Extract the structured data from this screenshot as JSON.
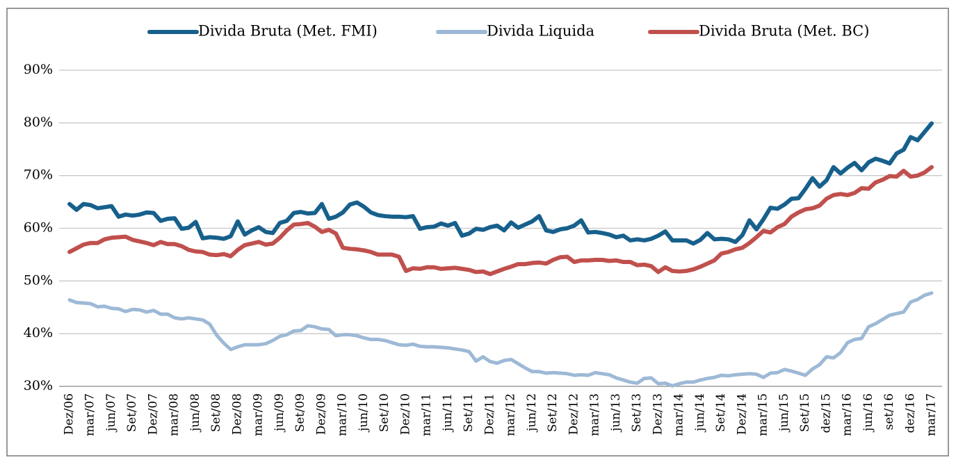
{
  "chart_data": {
    "type": "line",
    "categories": [
      "Dez/06",
      null,
      null,
      "mar/07",
      null,
      null,
      "jun/07",
      null,
      null,
      "Set/07",
      null,
      null,
      "Dez/07",
      null,
      null,
      "mar/08",
      null,
      null,
      "jun/08",
      null,
      null,
      "Set/08",
      null,
      null,
      "Dez/08",
      null,
      null,
      "mar/09",
      null,
      null,
      "jun/09",
      null,
      null,
      "Set/09",
      null,
      null,
      "Dez/09",
      null,
      null,
      "mar/10",
      null,
      null,
      "jun/10",
      null,
      null,
      "Set/10",
      null,
      null,
      "Dez/10",
      null,
      null,
      "mar/11",
      null,
      null,
      "jun/11",
      null,
      null,
      "Set/11",
      null,
      null,
      "Dez/11",
      null,
      null,
      "mar/12",
      null,
      null,
      "jun/12",
      null,
      null,
      "Set/12",
      null,
      null,
      "Dez/12",
      null,
      null,
      "mar/13",
      null,
      null,
      "jun/13",
      null,
      null,
      "Set/13",
      null,
      null,
      "Dez/13",
      null,
      null,
      "mar/14",
      null,
      null,
      "jun/14",
      null,
      null,
      "Set/14",
      null,
      null,
      "Dez/14",
      null,
      null,
      "mar/15",
      null,
      null,
      "jun/15",
      null,
      null,
      "Set/15",
      null,
      null,
      "dez/15",
      null,
      null,
      "mar/16",
      null,
      null,
      "jun/16",
      null,
      null,
      "set/16",
      null,
      null,
      "dez/16",
      null,
      null,
      "mar/17"
    ],
    "series": [
      {
        "name": "Divida Bruta (Met. FMI)",
        "color": "#17608c",
        "values": [
          64.6,
          63.5,
          64.6,
          64.4,
          63.8,
          64.0,
          64.2,
          62.2,
          62.6,
          62.4,
          62.6,
          63.0,
          62.9,
          61.4,
          61.8,
          61.9,
          59.9,
          60.1,
          61.2,
          58.1,
          58.3,
          58.2,
          58.0,
          58.5,
          61.3,
          58.8,
          59.6,
          60.2,
          59.3,
          59.1,
          61.0,
          61.4,
          62.9,
          63.1,
          62.8,
          62.9,
          64.6,
          61.8,
          62.2,
          63.0,
          64.5,
          64.9,
          64.1,
          63.0,
          62.5,
          62.3,
          62.2,
          62.2,
          62.1,
          62.3,
          59.9,
          60.2,
          60.3,
          60.9,
          60.5,
          61.0,
          58.6,
          59.0,
          59.9,
          59.7,
          60.2,
          60.5,
          59.6,
          61.1,
          60.1,
          60.7,
          61.3,
          62.3,
          59.6,
          59.3,
          59.8,
          60.0,
          60.5,
          61.5,
          59.2,
          59.3,
          59.1,
          58.8,
          58.3,
          58.6,
          57.7,
          57.9,
          57.7,
          58.0,
          58.6,
          59.4,
          57.7,
          57.7,
          57.7,
          57.1,
          57.8,
          59.1,
          57.9,
          58.0,
          57.9,
          57.4,
          58.7,
          61.5,
          59.8,
          61.7,
          63.9,
          63.7,
          64.5,
          65.6,
          65.7,
          67.5,
          69.5,
          67.9,
          69.1,
          71.6,
          70.4,
          71.5,
          72.4,
          71.0,
          72.5,
          73.2,
          72.8,
          72.3,
          74.2,
          74.9,
          77.3,
          76.7,
          78.3,
          79.9
        ]
      },
      {
        "name": "Divida Liquida",
        "color": "#9db9d6",
        "values": [
          46.4,
          45.9,
          45.8,
          45.7,
          45.1,
          45.2,
          44.8,
          44.7,
          44.2,
          44.6,
          44.5,
          44.1,
          44.4,
          43.7,
          43.7,
          43.0,
          42.8,
          43.0,
          42.8,
          42.6,
          41.8,
          39.7,
          38.2,
          37.0,
          37.5,
          37.9,
          37.9,
          37.9,
          38.1,
          38.7,
          39.5,
          39.8,
          40.5,
          40.6,
          41.5,
          41.3,
          40.9,
          40.8,
          39.6,
          39.8,
          39.8,
          39.6,
          39.2,
          38.9,
          38.9,
          38.7,
          38.3,
          37.9,
          37.8,
          38.0,
          37.6,
          37.5,
          37.5,
          37.4,
          37.3,
          37.1,
          36.9,
          36.6,
          34.8,
          35.6,
          34.7,
          34.4,
          34.9,
          35.1,
          34.3,
          33.5,
          32.8,
          32.8,
          32.5,
          32.6,
          32.5,
          32.4,
          32.1,
          32.2,
          32.1,
          32.6,
          32.4,
          32.2,
          31.6,
          31.2,
          30.8,
          30.6,
          31.5,
          31.6,
          30.5,
          30.6,
          30.1,
          30.5,
          30.8,
          30.8,
          31.2,
          31.5,
          31.7,
          32.1,
          32.0,
          32.2,
          32.3,
          32.4,
          32.3,
          31.7,
          32.5,
          32.6,
          33.2,
          32.9,
          32.5,
          32.1,
          33.3,
          34.1,
          35.6,
          35.4,
          36.4,
          38.3,
          38.9,
          39.1,
          41.3,
          41.9,
          42.7,
          43.5,
          43.8,
          44.1,
          46.0,
          46.5,
          47.3,
          47.7
        ]
      },
      {
        "name": "Divida Bruta (Met. BC)",
        "color": "#c0504d",
        "values": [
          55.5,
          56.2,
          56.9,
          57.2,
          57.2,
          57.9,
          58.2,
          58.3,
          58.4,
          57.8,
          57.5,
          57.2,
          56.8,
          57.4,
          57.0,
          57.0,
          56.6,
          55.9,
          55.6,
          55.5,
          55.0,
          54.9,
          55.1,
          54.7,
          55.9,
          56.8,
          57.1,
          57.4,
          56.9,
          57.1,
          58.2,
          59.6,
          60.7,
          60.8,
          61.0,
          60.3,
          59.3,
          59.7,
          59.0,
          56.3,
          56.1,
          56.0,
          55.8,
          55.5,
          55.0,
          55.0,
          55.0,
          54.6,
          51.9,
          52.4,
          52.3,
          52.6,
          52.6,
          52.3,
          52.4,
          52.5,
          52.3,
          52.1,
          51.7,
          51.8,
          51.3,
          51.8,
          52.3,
          52.7,
          53.2,
          53.2,
          53.4,
          53.5,
          53.3,
          54.0,
          54.5,
          54.6,
          53.6,
          53.9,
          53.9,
          54.0,
          54.0,
          53.8,
          53.9,
          53.6,
          53.6,
          53.0,
          53.1,
          52.8,
          51.7,
          52.6,
          51.9,
          51.8,
          51.9,
          52.2,
          52.7,
          53.3,
          53.9,
          55.2,
          55.5,
          56.0,
          56.3,
          57.2,
          58.3,
          59.5,
          59.2,
          60.2,
          60.8,
          62.2,
          63.0,
          63.6,
          63.8,
          64.3,
          65.6,
          66.3,
          66.5,
          66.3,
          66.7,
          67.6,
          67.5,
          68.7,
          69.2,
          69.9,
          69.8,
          70.9,
          69.8,
          70.0,
          70.6,
          71.6
        ]
      }
    ],
    "ylim": [
      30,
      90
    ],
    "yticks": [
      {
        "value": 30,
        "label": "30%"
      },
      {
        "value": 40,
        "label": "40%"
      },
      {
        "value": 50,
        "label": "50%"
      },
      {
        "value": 60,
        "label": "60%"
      },
      {
        "value": 70,
        "label": "70%"
      },
      {
        "value": 80,
        "label": "80%"
      },
      {
        "value": 90,
        "label": "90%"
      }
    ],
    "grid": true,
    "legend": "top"
  }
}
